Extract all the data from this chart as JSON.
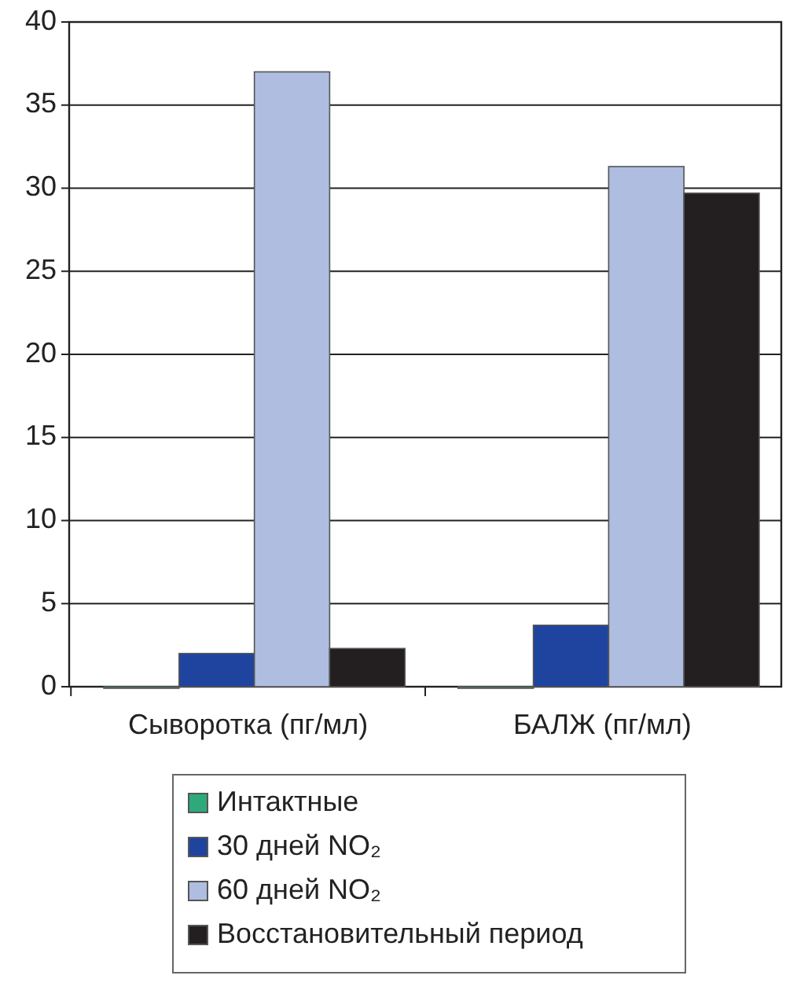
{
  "chart_data": {
    "type": "bar",
    "categories": [
      "Сыворотка (пг/мл)",
      "БАЛЖ (пг/мл)"
    ],
    "series": [
      {
        "name": "Интактные",
        "color": "#2eaa7a",
        "values": [
          0,
          0
        ]
      },
      {
        "name": "30 дней NO₂",
        "color": "#1e44a0",
        "values": [
          2.0,
          3.7
        ]
      },
      {
        "name": "60 дней NO₂",
        "color": "#aebde0",
        "values": [
          37.0,
          31.3
        ]
      },
      {
        "name": "Восстановительный период",
        "color": "#231f20",
        "values": [
          2.3,
          29.7
        ]
      }
    ],
    "ylim": [
      0,
      40
    ],
    "yticks": [
      0,
      5,
      10,
      15,
      20,
      25,
      30,
      35,
      40
    ],
    "grid": "y",
    "legend": "bottom"
  }
}
